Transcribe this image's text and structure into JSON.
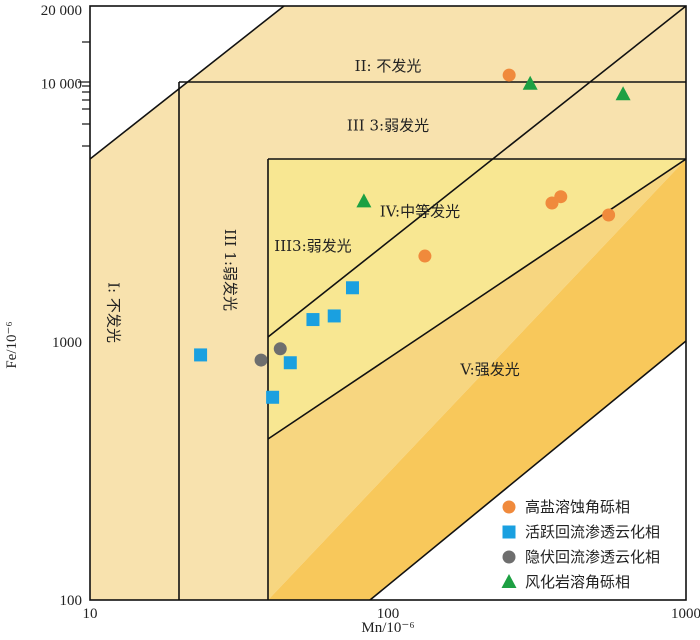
{
  "chart_data": {
    "type": "scatter",
    "title": "",
    "xlabel": "Mn/10⁻⁶",
    "ylabel": "Fe/10⁻⁶",
    "x_scale": "log",
    "y_scale": "log",
    "xlim": [
      10,
      1000
    ],
    "ylim": [
      100,
      20000
    ],
    "x_ticks": [
      {
        "value": 10,
        "label": "10"
      },
      {
        "value": 100,
        "label": "100"
      },
      {
        "value": 1000,
        "label": "1000"
      }
    ],
    "y_ticks": [
      {
        "value": 100,
        "label": "100"
      },
      {
        "value": 1000,
        "label": "1000"
      },
      {
        "value": 10000,
        "label": "10 000"
      },
      {
        "value": 20000,
        "label": "20 000"
      }
    ],
    "regions": [
      {
        "id": "I",
        "label": "I: 不发光",
        "at": [
          12,
          1300
        ]
      },
      {
        "id": "II",
        "label": "II: 不发光",
        "at": [
          100,
          11700
        ]
      },
      {
        "id": "III3-upper",
        "label": "III 3:弱发光",
        "at": [
          100,
          6900
        ]
      },
      {
        "id": "III1",
        "label": "III 1:弱发光",
        "at": [
          29.5,
          1900
        ]
      },
      {
        "id": "III3-lower",
        "label": "III3:弱发光",
        "at": [
          56,
          2350
        ]
      },
      {
        "id": "IV",
        "label": "IV:中等发光",
        "at": [
          128,
          3200
        ]
      },
      {
        "id": "V",
        "label": "V:强发光",
        "at": [
          220,
          780
        ]
      }
    ],
    "series": [
      {
        "name": "高盐溶蚀角砾相",
        "marker": "circle",
        "color": "#F08A3C",
        "points": [
          [
            255,
            10800
          ],
          [
            355,
            3450
          ],
          [
            380,
            3650
          ],
          [
            550,
            3100
          ],
          [
            133,
            2150
          ]
        ]
      },
      {
        "name": "活跃回流渗透云化相",
        "marker": "square",
        "color": "#1AA0E0",
        "points": [
          [
            23.5,
            890
          ],
          [
            41,
            610
          ],
          [
            47,
            830
          ],
          [
            56,
            1220
          ],
          [
            66,
            1260
          ],
          [
            76,
            1620
          ]
        ]
      },
      {
        "name": "隐伏回流渗透云化相",
        "marker": "circle",
        "color": "#6E6E6E",
        "points": [
          [
            37.5,
            850
          ],
          [
            43.5,
            940
          ]
        ]
      },
      {
        "name": "风化岩溶角砾相",
        "marker": "triangle",
        "color": "#1DA043",
        "points": [
          [
            300,
            10000
          ],
          [
            615,
            9100
          ],
          [
            83,
            3500
          ]
        ]
      }
    ],
    "legend_position": "bottom-right"
  }
}
